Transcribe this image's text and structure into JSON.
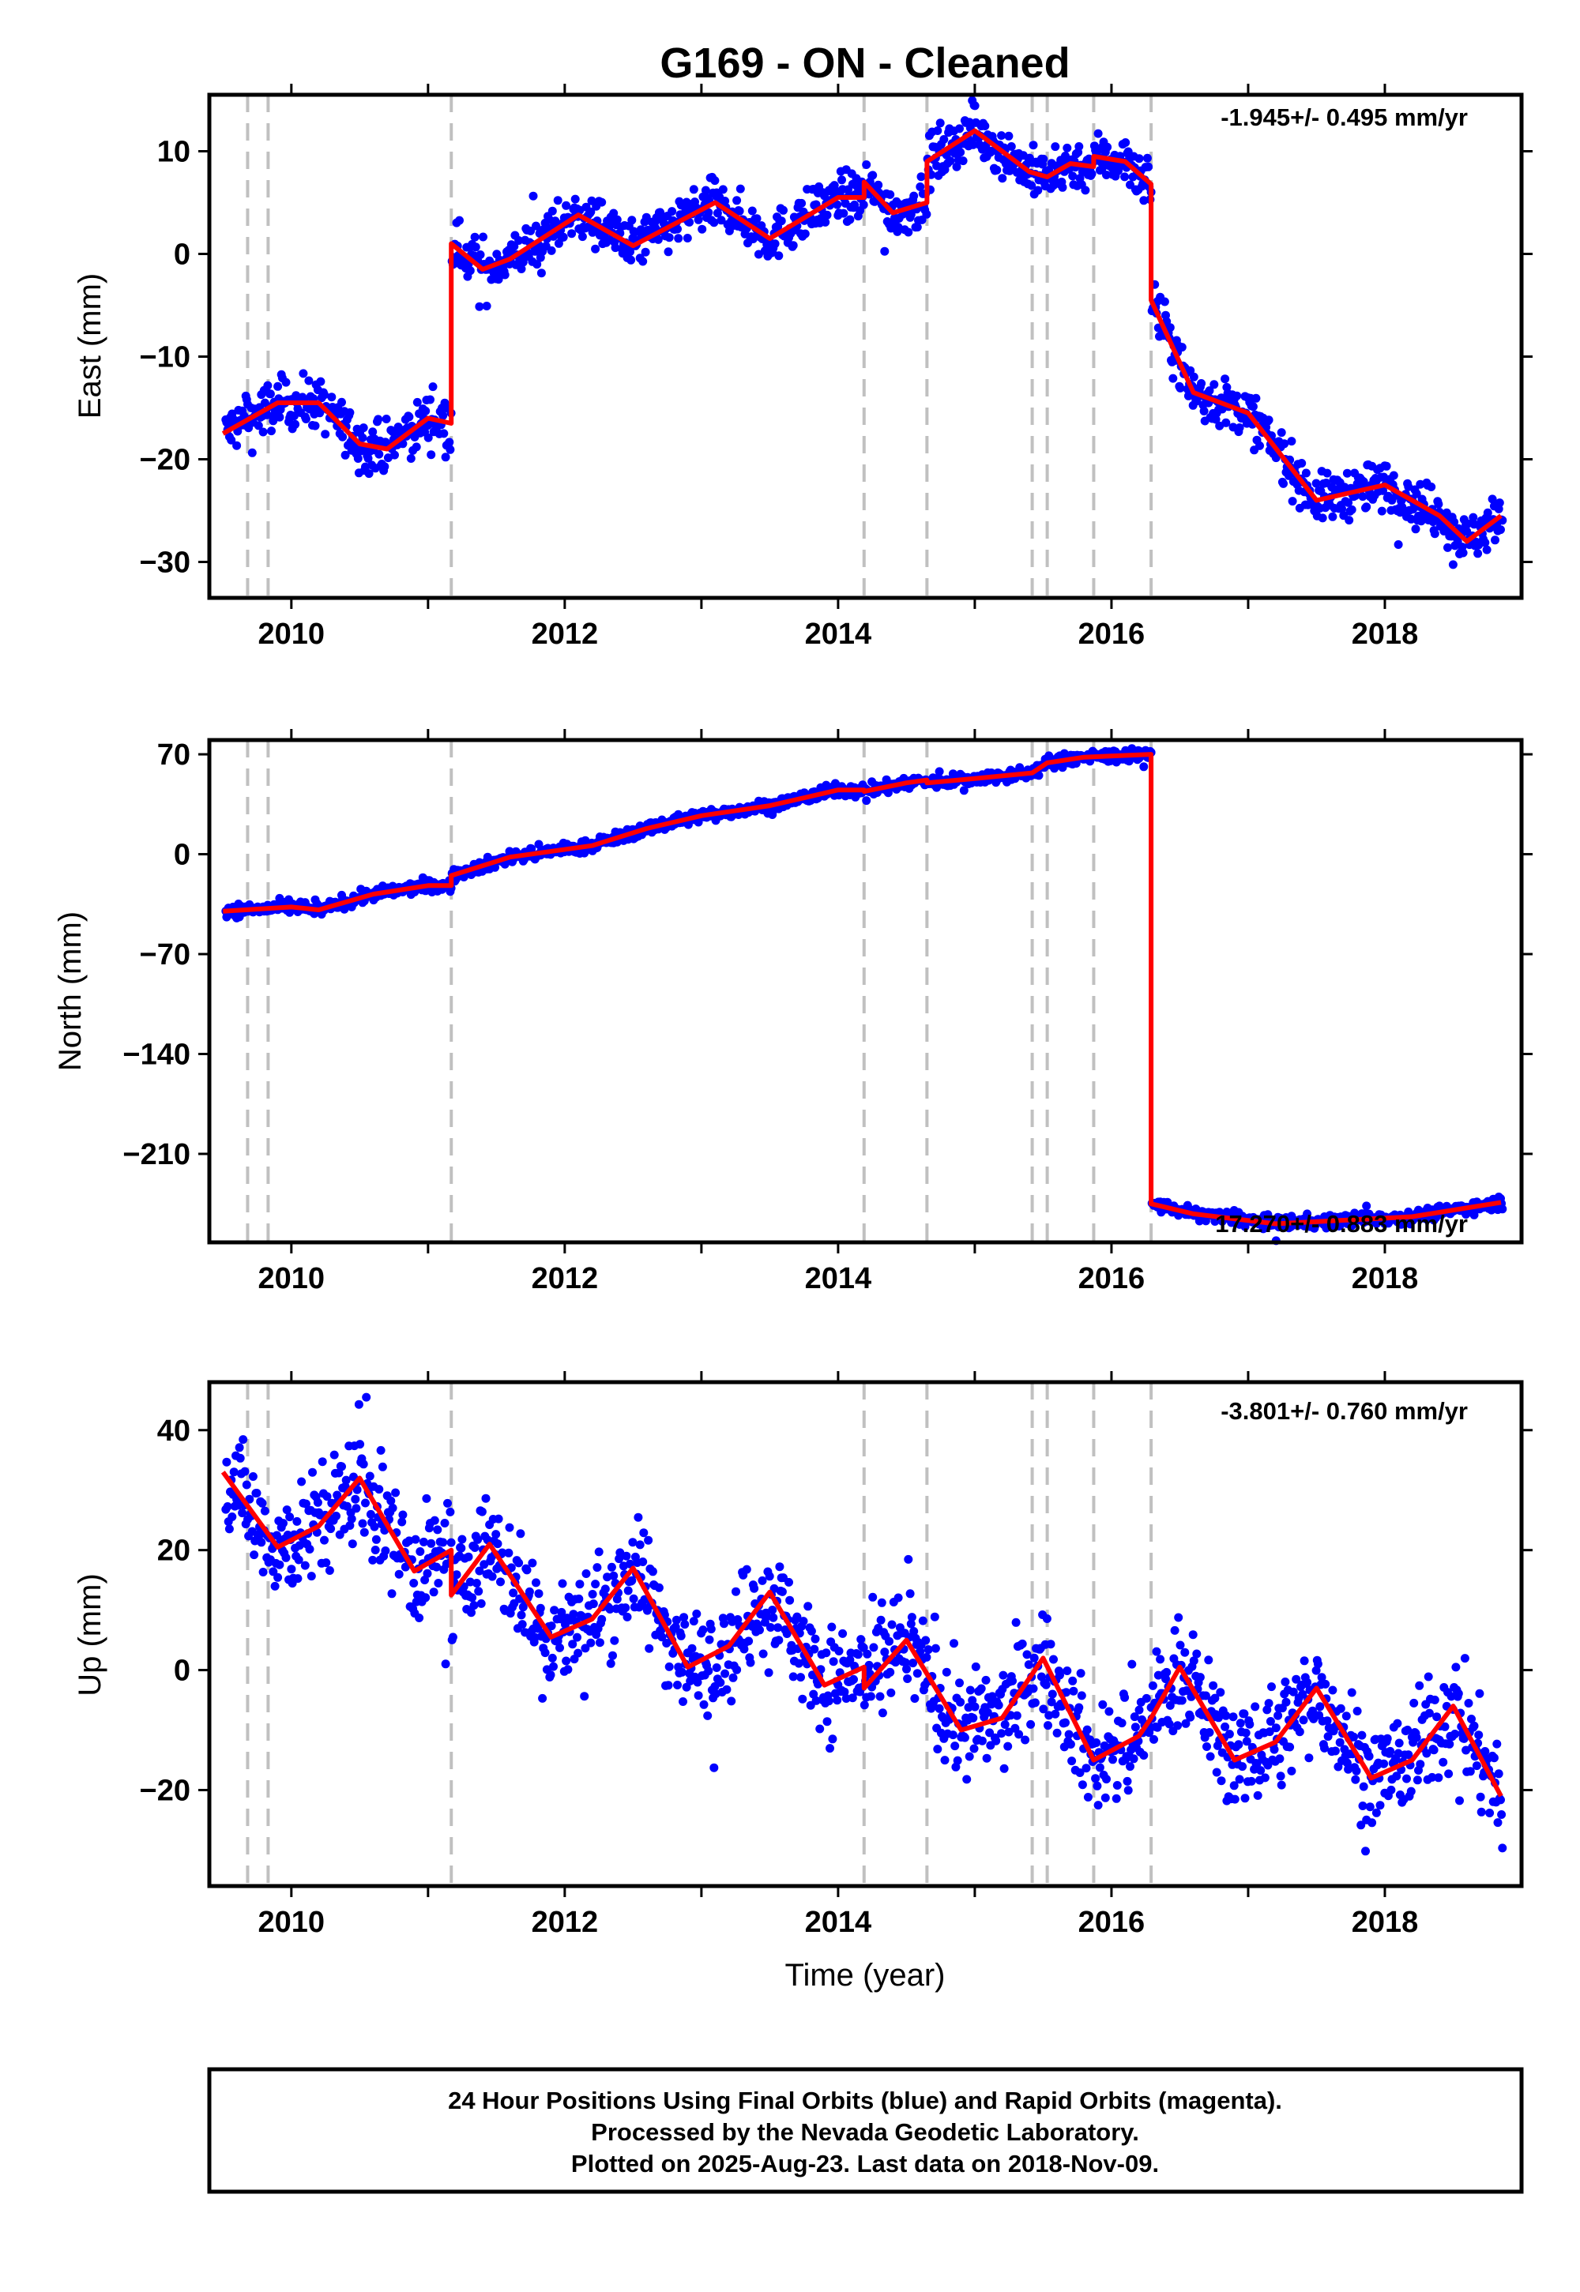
{
  "chart_data": {
    "type": "scatter",
    "title": "G169  - ON - Cleaned",
    "xlabel": "Time (year)",
    "xlim": [
      2009.4,
      2019.0
    ],
    "x_ticks": [
      "2010",
      "2012",
      "2014",
      "2016",
      "2018"
    ],
    "grid": false,
    "event_lines_year": [
      2009.68,
      2009.83,
      2011.17,
      2014.19,
      2014.65,
      2015.42,
      2015.53,
      2015.87,
      2016.29
    ],
    "colors": {
      "final_orbits": "#0000ff",
      "model": "#ff0000",
      "event_lines": "#c0c0c0"
    },
    "panels": [
      {
        "ylabel": "East (mm)",
        "ylim": [
          -33.5,
          15.5
        ],
        "y_ticks": [
          10,
          0,
          -10,
          -20,
          -30
        ],
        "rate_text": "-1.945+/- 0.495 mm/yr",
        "model": {
          "x": [
            2009.5,
            2009.9,
            2010.2,
            2010.5,
            2010.7,
            2011.0,
            2011.17,
            2011.17,
            2011.4,
            2011.6,
            2012.1,
            2012.5,
            2013.1,
            2013.5,
            2014.0,
            2014.19,
            2014.19,
            2014.4,
            2014.65,
            2014.65,
            2015.0,
            2015.4,
            2015.53,
            2015.53,
            2015.7,
            2015.87,
            2015.87,
            2016.1,
            2016.29,
            2016.29,
            2016.6,
            2017.0,
            2017.5,
            2018.0,
            2018.4,
            2018.6,
            2018.85
          ],
          "y": [
            -17.5,
            -14.5,
            -14.5,
            -18.5,
            -19.0,
            -16.0,
            -16.5,
            1.0,
            -1.5,
            -0.5,
            3.8,
            0.8,
            5.0,
            1.5,
            5.5,
            5.5,
            7.0,
            4.0,
            5.0,
            9.0,
            12.0,
            8.0,
            7.5,
            7.5,
            8.8,
            8.5,
            9.5,
            9.0,
            6.8,
            -4.5,
            -13.5,
            -15.5,
            -24.0,
            -22.5,
            -25.5,
            -28.0,
            -25.5
          ]
        }
      },
      {
        "ylabel": "North (mm)",
        "ylim": [
          -272,
          80
        ],
        "y_ticks": [
          70,
          0,
          -70,
          -140,
          -210
        ],
        "rate_text": "17.270+/- 0.883 mm/yr",
        "model": {
          "x": [
            2009.5,
            2010.0,
            2010.2,
            2010.6,
            2011.0,
            2011.17,
            2011.17,
            2011.6,
            2012.2,
            2012.6,
            2013.0,
            2013.5,
            2014.0,
            2014.19,
            2014.19,
            2014.5,
            2014.65,
            2014.65,
            2015.0,
            2015.42,
            2015.53,
            2015.8,
            2016.29,
            2016.29,
            2016.6,
            2017.2,
            2017.6,
            2018.2,
            2018.85
          ],
          "y": [
            -40,
            -37,
            -39,
            -28,
            -22,
            -22,
            -15,
            -2,
            6,
            18,
            27,
            34,
            45,
            45,
            44,
            50,
            52,
            50,
            53,
            57,
            64,
            68,
            70,
            -245,
            -252,
            -259,
            -257,
            -254,
            -244
          ]
        }
      },
      {
        "ylabel": "Up (mm)",
        "ylim": [
          -36,
          48
        ],
        "y_ticks": [
          40,
          20,
          0,
          -20
        ],
        "rate_text": "-3.801+/- 0.760 mm/yr",
        "model": {
          "x": [
            2009.5,
            2009.9,
            2010.2,
            2010.5,
            2010.9,
            2011.17,
            2011.17,
            2011.45,
            2011.9,
            2012.2,
            2012.5,
            2012.9,
            2013.2,
            2013.5,
            2013.9,
            2014.19,
            2014.19,
            2014.5,
            2014.9,
            2015.2,
            2015.5,
            2015.87,
            2015.87,
            2016.2,
            2016.29,
            2016.5,
            2016.9,
            2017.2,
            2017.5,
            2017.9,
            2018.2,
            2018.5,
            2018.85
          ],
          "y": [
            33,
            20.5,
            24,
            32,
            16.5,
            20,
            12.5,
            21,
            5.5,
            8.5,
            17,
            0.5,
            4,
            13,
            -2.5,
            0.5,
            -3,
            5,
            -10,
            -8,
            2,
            -15,
            -15,
            -11,
            -8,
            0.5,
            -15,
            -12,
            -3,
            -18,
            -15,
            -6,
            -21
          ]
        }
      }
    ],
    "footer_lines": [
      "24 Hour Positions Using Final Orbits (blue) and Rapid Orbits (magenta).",
      "Processed by the Nevada Geodetic Laboratory.",
      "Plotted on 2025-Aug-23. Last data on 2018-Nov-09."
    ]
  }
}
